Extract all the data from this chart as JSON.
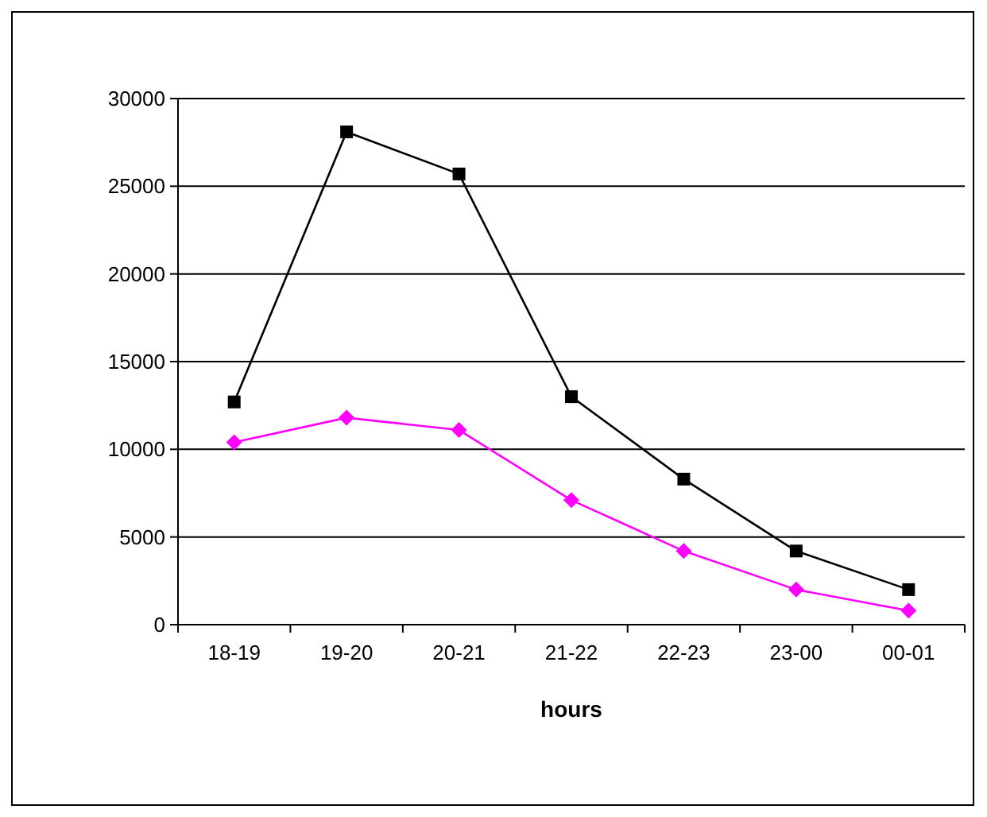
{
  "chart_data": {
    "type": "line",
    "xlabel": "hours",
    "categories": [
      "18-19",
      "19-20",
      "20-21",
      "21-22",
      "22-23",
      "23-00",
      "00-01"
    ],
    "series": [
      {
        "color": "#000000",
        "marker": "square",
        "values": [
          12700,
          28100,
          25700,
          13000,
          8300,
          4200,
          2000
        ]
      },
      {
        "color": "#ff00ff",
        "marker": "diamond",
        "values": [
          10400,
          11800,
          11100,
          7100,
          4200,
          2000,
          800
        ]
      }
    ],
    "ylim": [
      0,
      30000
    ],
    "yticks": [
      0,
      5000,
      10000,
      15000,
      20000,
      25000,
      30000
    ],
    "grid": "y"
  }
}
